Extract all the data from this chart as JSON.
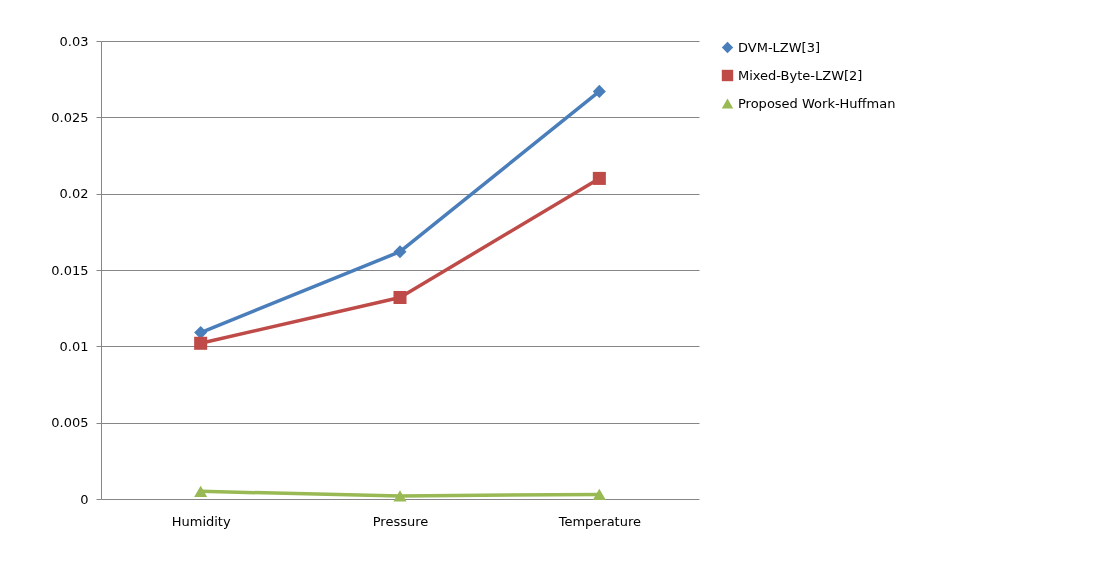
{
  "chart_data": {
    "type": "line",
    "categories": [
      "Humidity",
      "Pressure",
      "Temperature"
    ],
    "series": [
      {
        "name": "DVM-LZW[3]",
        "color": "#4a7ebb",
        "marker": "diamond",
        "values": [
          0.0109,
          0.0162,
          0.0267
        ]
      },
      {
        "name": "Mixed-Byte-LZW[2]",
        "color": "#be4b48",
        "marker": "square",
        "values": [
          0.0102,
          0.0132,
          0.021
        ]
      },
      {
        "name": "Proposed Work-Huffman",
        "color": "#98b954",
        "marker": "triangle",
        "values": [
          0.0005,
          0.0002,
          0.0003
        ]
      }
    ],
    "ylim": [
      0,
      0.03
    ],
    "yticks": [
      0,
      0.005,
      0.01,
      0.015,
      0.02,
      0.025,
      0.03
    ],
    "grid": "y",
    "legend": "right"
  }
}
